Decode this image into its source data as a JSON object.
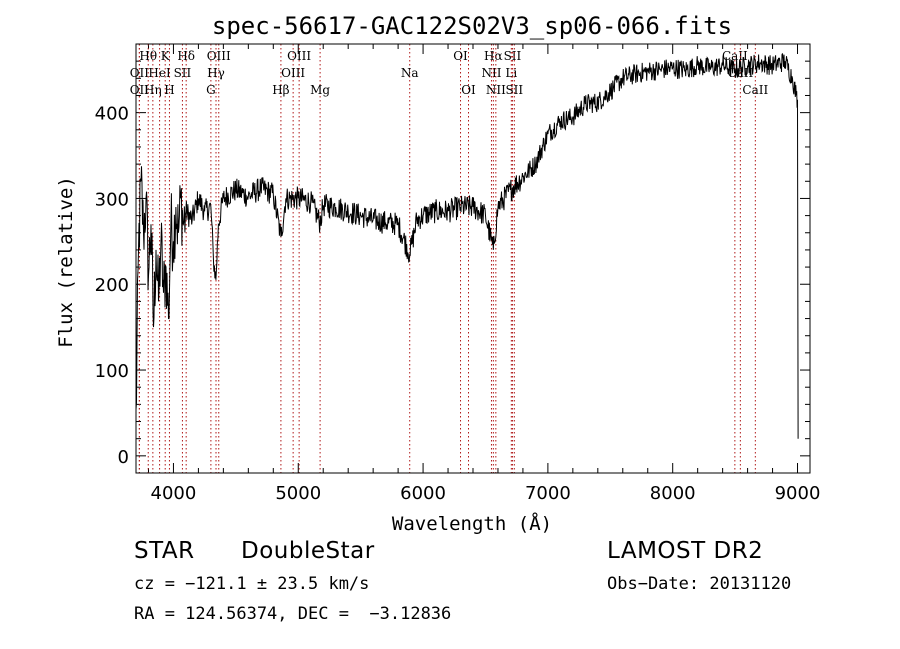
{
  "chart_data": {
    "type": "line",
    "title": "spec-56617-GAC122S02V3_sp06-066.fits",
    "xlabel": "Wavelength (Å)",
    "ylabel": "Flux (relative)",
    "xlim": [
      3700,
      9100
    ],
    "ylim": [
      -20,
      480
    ],
    "xticks": [
      4000,
      5000,
      6000,
      7000,
      8000,
      9000
    ],
    "yticks": [
      0,
      100,
      200,
      300,
      400
    ],
    "x_minor_step": 200,
    "y_minor_step": 20,
    "grid": false,
    "legend": "none",
    "series": [
      {
        "points": [
          [
            3700,
            40
          ],
          [
            3720,
            240
          ],
          [
            3740,
            320
          ],
          [
            3760,
            260
          ],
          [
            3780,
            300
          ],
          [
            3800,
            210
          ],
          [
            3820,
            270
          ],
          [
            3840,
            150
          ],
          [
            3860,
            240
          ],
          [
            3880,
            180
          ],
          [
            3900,
            250
          ],
          [
            3920,
            190
          ],
          [
            3940,
            220
          ],
          [
            3960,
            160
          ],
          [
            3980,
            270
          ],
          [
            4000,
            250
          ],
          [
            4020,
            290
          ],
          [
            4040,
            260
          ],
          [
            4060,
            300
          ],
          [
            4080,
            270
          ],
          [
            4100,
            285
          ],
          [
            4150,
            275
          ],
          [
            4200,
            300
          ],
          [
            4250,
            285
          ],
          [
            4300,
            290
          ],
          [
            4320,
            230
          ],
          [
            4340,
            205
          ],
          [
            4360,
            270
          ],
          [
            4400,
            300
          ],
          [
            4500,
            310
          ],
          [
            4600,
            302
          ],
          [
            4700,
            312
          ],
          [
            4800,
            305
          ],
          [
            4861,
            255
          ],
          [
            4900,
            300
          ],
          [
            5000,
            300
          ],
          [
            5100,
            296
          ],
          [
            5175,
            272
          ],
          [
            5200,
            292
          ],
          [
            5300,
            290
          ],
          [
            5400,
            285
          ],
          [
            5500,
            280
          ],
          [
            5600,
            275
          ],
          [
            5700,
            272
          ],
          [
            5800,
            270
          ],
          [
            5893,
            235
          ],
          [
            5950,
            275
          ],
          [
            6000,
            280
          ],
          [
            6100,
            285
          ],
          [
            6200,
            285
          ],
          [
            6300,
            290
          ],
          [
            6400,
            290
          ],
          [
            6500,
            280
          ],
          [
            6563,
            240
          ],
          [
            6600,
            290
          ],
          [
            6700,
            310
          ],
          [
            6800,
            325
          ],
          [
            6900,
            340
          ],
          [
            7000,
            375
          ],
          [
            7100,
            390
          ],
          [
            7200,
            395
          ],
          [
            7300,
            410
          ],
          [
            7400,
            412
          ],
          [
            7500,
            425
          ],
          [
            7600,
            440
          ],
          [
            7700,
            445
          ],
          [
            7800,
            448
          ],
          [
            7900,
            450
          ],
          [
            8000,
            452
          ],
          [
            8100,
            450
          ],
          [
            8200,
            455
          ],
          [
            8300,
            452
          ],
          [
            8400,
            455
          ],
          [
            8500,
            450
          ],
          [
            8600,
            455
          ],
          [
            8700,
            458
          ],
          [
            8800,
            455
          ],
          [
            8900,
            460
          ],
          [
            8960,
            440
          ],
          [
            8990,
            420
          ],
          [
            9000,
            415
          ],
          [
            9005,
            20
          ]
        ]
      }
    ],
    "line_markers": {
      "color": "#b01818",
      "lines": [
        {
          "wavelength": 3727,
          "label": "OII",
          "row": 2
        },
        {
          "wavelength": 3727,
          "label": "OII",
          "row": 3
        },
        {
          "wavelength": 3798,
          "label": "Hθ",
          "row": 1
        },
        {
          "wavelength": 3835,
          "label": "Hη",
          "row": 3
        },
        {
          "wavelength": 3889,
          "label": "HeI",
          "row": 2
        },
        {
          "wavelength": 3934,
          "label": "K",
          "row": 1
        },
        {
          "wavelength": 3968,
          "label": "H",
          "row": 3
        },
        {
          "wavelength": 4072,
          "label": "SII",
          "row": 2
        },
        {
          "wavelength": 4102,
          "label": "Hδ",
          "row": 1
        },
        {
          "wavelength": 4300,
          "label": "G",
          "row": 3
        },
        {
          "wavelength": 4341,
          "label": "Hγ",
          "row": 2
        },
        {
          "wavelength": 4363,
          "label": "OIII",
          "row": 1
        },
        {
          "wavelength": 4861,
          "label": "Hβ",
          "row": 3
        },
        {
          "wavelength": 4959,
          "label": "OIII",
          "row": 2
        },
        {
          "wavelength": 5007,
          "label": "OIII",
          "row": 1
        },
        {
          "wavelength": 5175,
          "label": "Mg",
          "row": 3
        },
        {
          "wavelength": 5893,
          "label": "Na",
          "row": 2
        },
        {
          "wavelength": 6300,
          "label": "OI",
          "row": 1
        },
        {
          "wavelength": 6364,
          "label": "OI",
          "row": 3
        },
        {
          "wavelength": 6548,
          "label": "NII",
          "row": 2
        },
        {
          "wavelength": 6563,
          "label": "Hα",
          "row": 1
        },
        {
          "wavelength": 6583,
          "label": "NII",
          "row": 3
        },
        {
          "wavelength": 6707,
          "label": "Li",
          "row": 2
        },
        {
          "wavelength": 6716,
          "label": "SII",
          "row": 1
        },
        {
          "wavelength": 6731,
          "label": "SII",
          "row": 3
        },
        {
          "wavelength": 8498,
          "label": "CaII",
          "row": 1
        },
        {
          "wavelength": 8542,
          "label": "CaII",
          "row": 2
        },
        {
          "wavelength": 8662,
          "label": "CaII",
          "row": 3
        }
      ]
    }
  },
  "info": {
    "class_label": "STAR",
    "subclass_label": "DoubleStar",
    "survey_label": "LAMOST DR2",
    "redshift_line": "cz = −121.1 ± 23.5 km/s",
    "obsdate_line": "Obs−Date: 20131120",
    "coords_line": "RA = 124.56374, DEC =  −3.12836"
  }
}
